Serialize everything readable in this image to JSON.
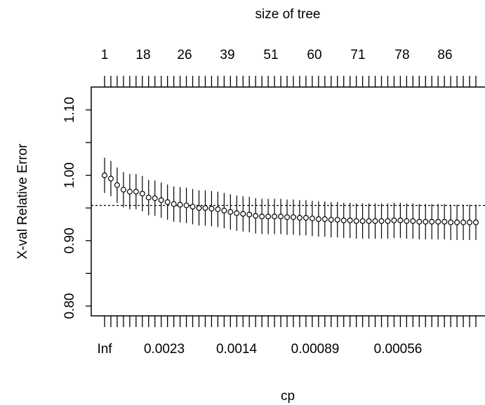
{
  "chart_data": {
    "type": "scatter",
    "title": "",
    "xlabel": "cp",
    "ylabel": "X-val Relative Error",
    "top_axis_label": "size of tree",
    "ylim": [
      0.785,
      1.135
    ],
    "yticks": [
      "0.80",
      "0.90",
      "1.00",
      "1.10"
    ],
    "ytick_values": [
      0.8,
      0.9,
      1.0,
      1.1
    ],
    "bottom_tick_labels": [
      "Inf",
      "0.0023",
      "0.0014",
      "0.00089",
      "0.00056"
    ],
    "top_tick_labels": [
      "1",
      "18",
      "26",
      "39",
      "51",
      "60",
      "71",
      "78",
      "86"
    ],
    "reference_line": 0.954,
    "points": [
      1.0,
      0.995,
      0.985,
      0.978,
      0.975,
      0.975,
      0.972,
      0.966,
      0.965,
      0.962,
      0.959,
      0.956,
      0.955,
      0.954,
      0.952,
      0.95,
      0.95,
      0.949,
      0.948,
      0.946,
      0.944,
      0.942,
      0.941,
      0.94,
      0.938,
      0.937,
      0.937,
      0.937,
      0.937,
      0.936,
      0.936,
      0.935,
      0.935,
      0.934,
      0.933,
      0.933,
      0.932,
      0.932,
      0.931,
      0.931,
      0.93,
      0.93,
      0.93,
      0.93,
      0.93,
      0.93,
      0.931,
      0.931,
      0.93,
      0.93,
      0.929,
      0.929,
      0.929,
      0.929,
      0.929,
      0.928,
      0.928,
      0.928,
      0.928,
      0.928
    ],
    "error_half_width": 0.027,
    "grid": false,
    "legend": "none"
  }
}
